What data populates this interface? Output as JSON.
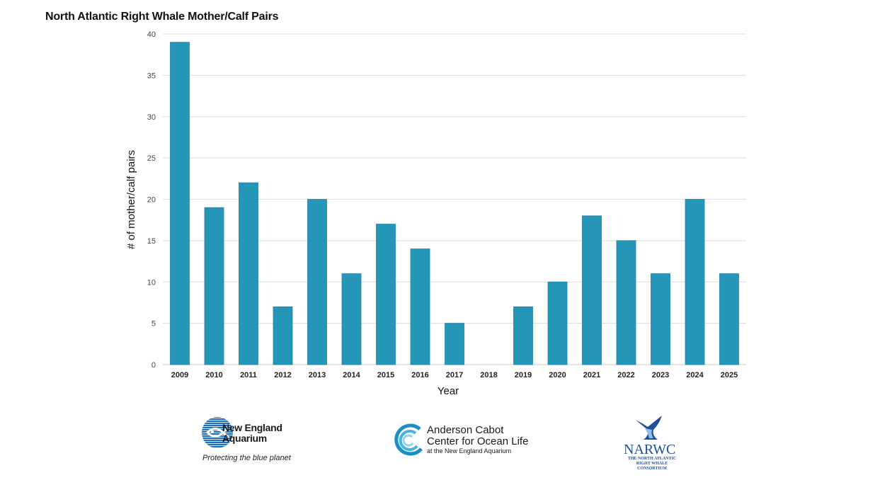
{
  "chart_data": {
    "type": "bar",
    "title": "North Atlantic Right Whale Mother/Calf Pairs",
    "xlabel": "Year",
    "ylabel": "# of mother/calf pairs",
    "categories": [
      "2009",
      "2010",
      "2011",
      "2012",
      "2013",
      "2014",
      "2015",
      "2016",
      "2017",
      "2018",
      "2019",
      "2020",
      "2021",
      "2022",
      "2023",
      "2024",
      "2025"
    ],
    "values": [
      39,
      19,
      22,
      7,
      20,
      11,
      17,
      14,
      5,
      0,
      7,
      10,
      18,
      15,
      11,
      20,
      11
    ],
    "ylim": [
      0,
      40
    ],
    "yticks": [
      0,
      5,
      10,
      15,
      20,
      25,
      30,
      35,
      40
    ],
    "grid": true,
    "legend": "none",
    "bar_color": "#2596b8"
  },
  "logos": {
    "nea": {
      "name_line1": "New England",
      "name_line2": "Aquarium",
      "tagline": "Protecting the blue planet",
      "color": "#1e6fb8"
    },
    "acc": {
      "line1": "Anderson Cabot",
      "line2": "Center for Ocean Life",
      "line3": "at the New England Aquarium",
      "color": "#1a8fc7"
    },
    "narwc": {
      "abbr": "NARWC",
      "sub_line1": "THE NORTH ATLANTIC",
      "sub_line2": "RIGHT WHALE CONSORTIUM",
      "color": "#1f4e9a"
    }
  }
}
